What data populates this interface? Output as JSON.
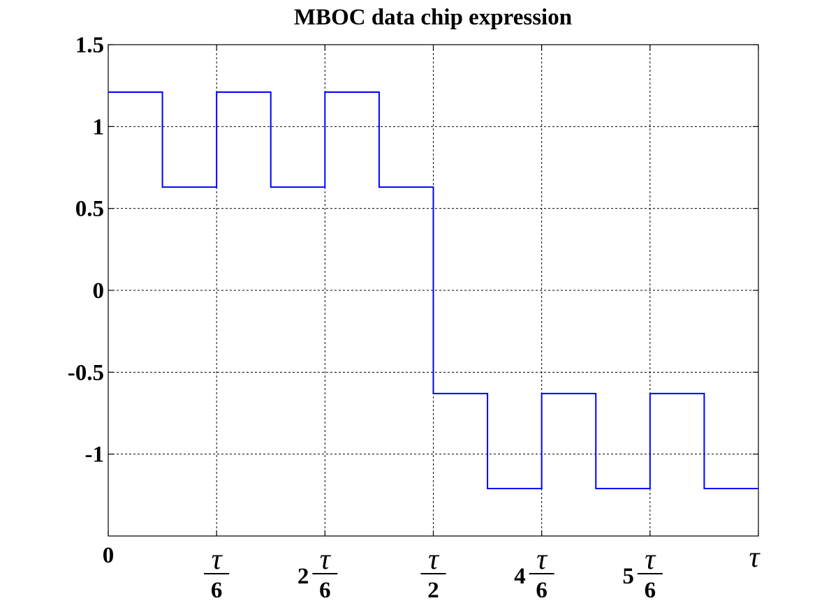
{
  "chart_data": {
    "type": "line",
    "title": "MBOC data chip expression",
    "xlabel": "",
    "ylabel": "",
    "xlim": [
      0,
      1
    ],
    "ylim": [
      -1.5,
      1.5
    ],
    "grid": true,
    "y_ticks": [
      {
        "value": 1.5,
        "label": "1.5"
      },
      {
        "value": 1,
        "label": "1"
      },
      {
        "value": 0.5,
        "label": "0.5"
      },
      {
        "value": 0,
        "label": "0"
      },
      {
        "value": -0.5,
        "label": "-0.5"
      },
      {
        "value": -1,
        "label": "-1"
      }
    ],
    "x_ticks": [
      {
        "value": 0,
        "text": "0"
      },
      {
        "value": 0.16667,
        "coef": "",
        "num": "τ",
        "den": "6"
      },
      {
        "value": 0.33333,
        "coef": "2",
        "num": "τ",
        "den": "6"
      },
      {
        "value": 0.5,
        "coef": "",
        "num": "τ",
        "den": "2"
      },
      {
        "value": 0.66667,
        "coef": "4",
        "num": "τ",
        "den": "6"
      },
      {
        "value": 0.83333,
        "coef": "5",
        "num": "τ",
        "den": "6"
      },
      {
        "value": 1,
        "tau": "τ"
      }
    ],
    "series": [
      {
        "color": "#0000ff",
        "step": true,
        "x": [
          0,
          0.08333,
          0.16667,
          0.25,
          0.33333,
          0.41667,
          0.5,
          0.58333,
          0.66667,
          0.75,
          0.83333,
          0.91667,
          1
        ],
        "values": [
          1.21,
          0.63,
          1.21,
          0.63,
          1.21,
          0.63,
          -0.63,
          -1.21,
          -0.63,
          -1.21,
          -0.63,
          -1.21,
          -1.21
        ]
      }
    ]
  }
}
